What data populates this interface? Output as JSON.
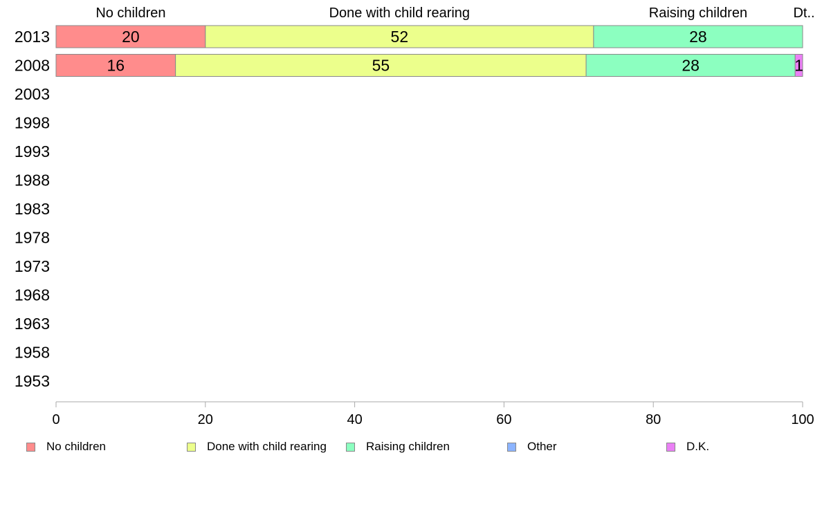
{
  "chart_data": {
    "type": "bar",
    "orientation": "horizontal",
    "stacked": true,
    "categories": [
      "2013",
      "2008",
      "2003",
      "1998",
      "1993",
      "1988",
      "1983",
      "1978",
      "1973",
      "1968",
      "1963",
      "1958",
      "1953"
    ],
    "series": [
      {
        "name": "No children",
        "color": "#ff8c8c",
        "values": [
          20,
          16,
          null,
          null,
          null,
          null,
          null,
          null,
          null,
          null,
          null,
          null,
          null
        ]
      },
      {
        "name": "Done with child rearing",
        "color": "#ecff8c",
        "values": [
          52,
          55,
          null,
          null,
          null,
          null,
          null,
          null,
          null,
          null,
          null,
          null,
          null
        ]
      },
      {
        "name": "Raising children",
        "color": "#8cffc0",
        "values": [
          28,
          28,
          null,
          null,
          null,
          null,
          null,
          null,
          null,
          null,
          null,
          null,
          null
        ]
      },
      {
        "name": "Other",
        "color": "#8cb4ff",
        "values": [
          0,
          0,
          null,
          null,
          null,
          null,
          null,
          null,
          null,
          null,
          null,
          null,
          null
        ]
      },
      {
        "name": "D.K.",
        "color": "#ea80f5",
        "values": [
          0,
          1,
          null,
          null,
          null,
          null,
          null,
          null,
          null,
          null,
          null,
          null,
          null
        ]
      }
    ],
    "top_labels": [
      "No children",
      "Done with child rearing",
      "Raising children",
      "Dt.."
    ],
    "xlim": [
      0,
      100
    ],
    "xticks": [
      0,
      20,
      40,
      60,
      80,
      100
    ],
    "xlabel": "",
    "ylabel": "",
    "title": "",
    "grid": false,
    "legend_position": "bottom"
  }
}
